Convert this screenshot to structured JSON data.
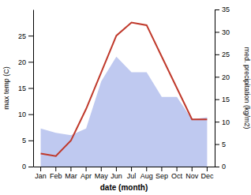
{
  "chart_data": {
    "type": "line",
    "xlabel": "date (month)",
    "ylabel": "max temp (C)",
    "y2label": "med. precipitation (kg/m2)",
    "categories": [
      "Jan",
      "Feb",
      "Mar",
      "Apr",
      "May",
      "Jun",
      "Jul",
      "Aug",
      "Sep",
      "Oct",
      "Nov",
      "Dec"
    ],
    "series": [
      {
        "type": "area",
        "axis": "y2",
        "color": "#bfc9f0",
        "values": [
          8.5,
          7.5,
          7.0,
          8.5,
          19.0,
          24.5,
          21.0,
          21.0,
          15.5,
          15.5,
          10.5,
          11.0
        ]
      },
      {
        "type": "line",
        "color": "#c0392b",
        "values": [
          2.5,
          2.0,
          5.0,
          11.0,
          18.0,
          25.0,
          27.5,
          27.0,
          21.0,
          15.0,
          9.0,
          9.0
        ]
      }
    ],
    "ylim": [
      0,
      30
    ],
    "yticks": [
      0,
      5,
      10,
      15,
      20,
      25
    ],
    "y2lim": [
      0,
      35
    ],
    "y2ticks": [
      0,
      5,
      10,
      15,
      20,
      25,
      30,
      35
    ],
    "grid": false
  }
}
